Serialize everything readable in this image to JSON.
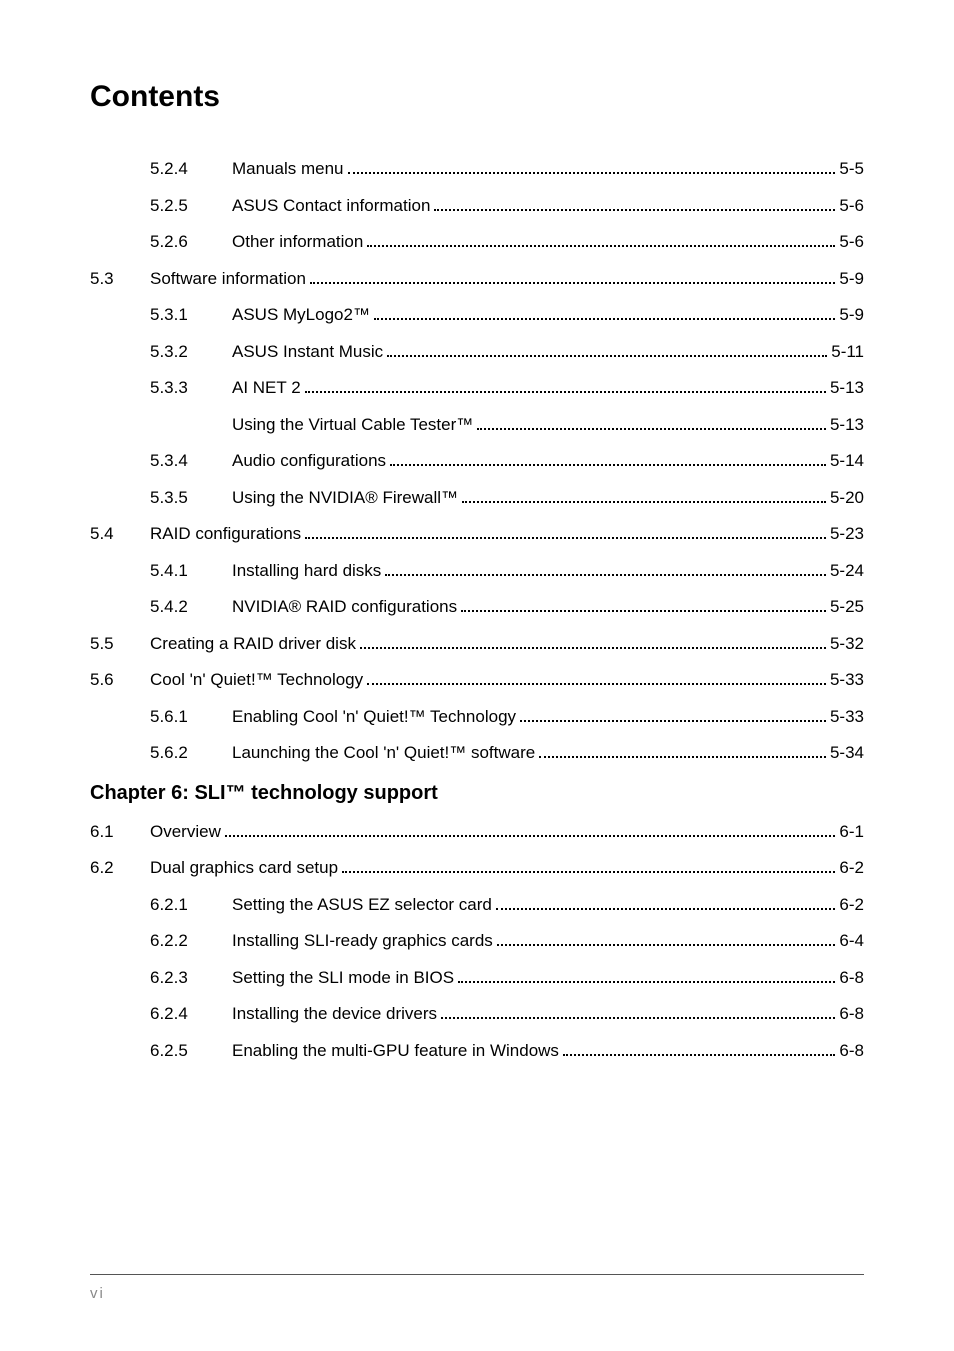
{
  "title": "Contents",
  "chapter5": {
    "items": [
      {
        "section": "",
        "sub": "5.2.4",
        "title": "Manuals menu",
        "page": "5-5",
        "indent": 1
      },
      {
        "section": "",
        "sub": "5.2.5",
        "title": "ASUS Contact information",
        "page": "5-6",
        "indent": 1
      },
      {
        "section": "",
        "sub": "5.2.6",
        "title": "Other information",
        "page": "5-6",
        "indent": 1
      },
      {
        "section": "5.3",
        "sub": "",
        "title": "Software information",
        "page": "5-9",
        "indent": 0
      },
      {
        "section": "",
        "sub": "5.3.1",
        "title": "ASUS MyLogo2™",
        "page": "5-9",
        "indent": 1
      },
      {
        "section": "",
        "sub": "5.3.2",
        "title": "ASUS Instant Music",
        "page": "5-11",
        "indent": 1
      },
      {
        "section": "",
        "sub": "5.3.3",
        "title": "AI NET 2",
        "page": "5-13",
        "indent": 1
      },
      {
        "section": "",
        "sub": "",
        "title": "Using the Virtual Cable Tester™",
        "page": "5-13",
        "indent": 1
      },
      {
        "section": "",
        "sub": "5.3.4",
        "title": "Audio configurations",
        "page": "5-14",
        "indent": 1
      },
      {
        "section": "",
        "sub": "5.3.5",
        "title": "Using the NVIDIA® Firewall™",
        "page": "5-20",
        "indent": 1
      },
      {
        "section": "5.4",
        "sub": "",
        "title": "RAID configurations",
        "page": "5-23",
        "indent": 0
      },
      {
        "section": "",
        "sub": "5.4.1",
        "title": "Installing hard disks",
        "page": "5-24",
        "indent": 1
      },
      {
        "section": "",
        "sub": "5.4.2",
        "title": "NVIDIA® RAID configurations",
        "page": "5-25",
        "indent": 1
      },
      {
        "section": "5.5",
        "sub": "",
        "title": "Creating a RAID driver disk",
        "page": "5-32",
        "indent": 0
      },
      {
        "section": "5.6",
        "sub": "",
        "title": "Cool 'n' Quiet!™ Technology",
        "page": "5-33",
        "indent": 0
      },
      {
        "section": "",
        "sub": "5.6.1",
        "title": "Enabling Cool 'n' Quiet!™ Technology",
        "page": "5-33",
        "indent": 1
      },
      {
        "section": "",
        "sub": "5.6.2",
        "title": "Launching the Cool 'n' Quiet!™ software",
        "page": "5-34",
        "indent": 1
      }
    ]
  },
  "chapter6": {
    "heading": "Chapter 6: SLI™ technology support",
    "items": [
      {
        "section": "6.1",
        "sub": "",
        "title": "Overview",
        "page": "6-1",
        "indent": 0
      },
      {
        "section": "6.2",
        "sub": "",
        "title": "Dual graphics card setup",
        "page": "6-2",
        "indent": 0
      },
      {
        "section": "",
        "sub": "6.2.1",
        "title": "Setting the ASUS EZ selector card",
        "page": "6-2",
        "indent": 1
      },
      {
        "section": "",
        "sub": "6.2.2",
        "title": "Installing SLI-ready graphics cards",
        "page": "6-4",
        "indent": 1
      },
      {
        "section": "",
        "sub": "6.2.3",
        "title": "Setting the SLI mode in BIOS",
        "page": "6-8",
        "indent": 1
      },
      {
        "section": "",
        "sub": "6.2.4",
        "title": "Installing the device drivers",
        "page": "6-8",
        "indent": 1
      },
      {
        "section": "",
        "sub": "6.2.5",
        "title": "Enabling the multi-GPU feature in Windows",
        "page": "6-8",
        "indent": 1
      }
    ]
  },
  "footer": {
    "page_number": "vi"
  }
}
